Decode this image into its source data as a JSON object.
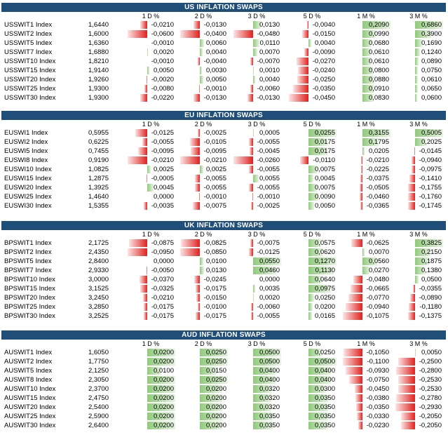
{
  "columns": [
    "1 D %",
    "2 D %",
    "3 D %",
    "5 D %",
    "1 M %",
    "3 M %"
  ],
  "colors": {
    "header_bg": "#1f4e79",
    "positive": "#8fca7a",
    "negative": "#e0211e"
  },
  "sections": [
    {
      "title": "US INFLATION SWAPS",
      "rows": [
        {
          "name": "USSWIT1 Index",
          "level": "1,6440",
          "changes": [
            "-0,0210",
            "-0,0130",
            "0,0130",
            "-0,0040",
            "0,2090",
            "0,6860"
          ],
          "values": [
            -0.021,
            -0.013,
            0.013,
            -0.004,
            0.209,
            0.686
          ]
        },
        {
          "name": "USSWIT2 Index",
          "level": "1,6000",
          "changes": [
            "-0,0600",
            "-0,0400",
            "-0,0480",
            "-0,0150",
            "0,0990",
            "0,3900"
          ],
          "values": [
            -0.06,
            -0.04,
            -0.048,
            -0.015,
            0.099,
            0.39
          ]
        },
        {
          "name": "USSWIT5 Index",
          "level": "1,6360",
          "changes": [
            "-0,0010",
            "0,0060",
            "0,0110",
            "0,0040",
            "0,0680",
            "0,1690"
          ],
          "values": [
            -0.001,
            0.006,
            0.011,
            0.004,
            0.068,
            0.169
          ]
        },
        {
          "name": "USSWIT7 Index",
          "level": "1,6880",
          "changes": [
            "0,0020",
            "0,0040",
            "0,0070",
            "-0,0090",
            "0,0610",
            "0,1240"
          ],
          "values": [
            0.002,
            0.004,
            0.007,
            -0.009,
            0.061,
            0.124
          ]
        },
        {
          "name": "USSWIT10 Index",
          "level": "1,8210",
          "changes": [
            "-0,0010",
            "-0,0040",
            "-0,0070",
            "-0,0270",
            "0,0610",
            "0,0890"
          ],
          "values": [
            -0.001,
            -0.004,
            -0.007,
            -0.027,
            0.061,
            0.089
          ]
        },
        {
          "name": "USSWIT15 Index",
          "level": "1,9140",
          "changes": [
            "0,0050",
            "0,0030",
            "0,0010",
            "-0,0240",
            "0,0800",
            "0,0750"
          ],
          "values": [
            0.005,
            0.003,
            0.001,
            -0.024,
            0.08,
            0.075
          ]
        },
        {
          "name": "USSWIT20 Index",
          "level": "1,9260",
          "changes": [
            "-0,0020",
            "0,0050",
            "0,0040",
            "-0,0250",
            "0,0880",
            "0,0610"
          ],
          "values": [
            -0.002,
            0.005,
            0.004,
            -0.025,
            0.088,
            0.061
          ]
        },
        {
          "name": "USSWIT25 Index",
          "level": "1,9300",
          "changes": [
            "-0,0080",
            "-0,0010",
            "-0,0060",
            "-0,0350",
            "0,0910",
            "0,0650"
          ],
          "values": [
            -0.008,
            -0.001,
            -0.006,
            -0.035,
            0.091,
            0.065
          ]
        },
        {
          "name": "USSWIT30 Index",
          "level": "1,9300",
          "changes": [
            "-0,0220",
            "-0,0130",
            "-0,0130",
            "-0,0450",
            "0,0830",
            "0,0600"
          ],
          "values": [
            -0.022,
            -0.013,
            -0.013,
            -0.045,
            0.083,
            0.06
          ]
        }
      ]
    },
    {
      "title": "EU INFLATION SWAPS",
      "rows": [
        {
          "name": "EUSWI1 Index",
          "level": "0,5955",
          "changes": [
            "-0,0125",
            "-0,0025",
            "0,0005",
            "0,0255",
            "0,3155",
            "0,5005"
          ],
          "values": [
            -0.0125,
            -0.0025,
            0.0005,
            0.0255,
            0.3155,
            0.5005
          ]
        },
        {
          "name": "EUSWI2 Index",
          "level": "0,6225",
          "changes": [
            "-0,0055",
            "-0,0105",
            "-0,0055",
            "0,0175",
            "0,1795",
            "0,2025"
          ],
          "values": [
            -0.0055,
            -0.0105,
            -0.0055,
            0.0175,
            0.1795,
            0.2025
          ]
        },
        {
          "name": "EUSWI5 Index",
          "level": "0,7455",
          "changes": [
            "-0,0095",
            "-0,0095",
            "-0,0045",
            "0,0175",
            "0,0205",
            "-0,0145"
          ],
          "values": [
            -0.0095,
            -0.0095,
            -0.0045,
            0.0175,
            0.0205,
            -0.0145
          ]
        },
        {
          "name": "EUSWI8 Index",
          "level": "0,9190",
          "changes": [
            "-0,0210",
            "-0,0210",
            "-0,0260",
            "-0,0110",
            "-0,0210",
            "-0,0940"
          ],
          "values": [
            -0.021,
            -0.021,
            -0.026,
            -0.011,
            -0.021,
            -0.094
          ]
        },
        {
          "name": "EUSWI10 Index",
          "level": "1,0825",
          "changes": [
            "0,0025",
            "0,0025",
            "-0,0055",
            "0,0075",
            "-0,0225",
            "-0,0975"
          ],
          "values": [
            0.0025,
            0.0025,
            -0.0055,
            0.0075,
            -0.0225,
            -0.0975
          ]
        },
        {
          "name": "EUSWI15 Index",
          "level": "1,2875",
          "changes": [
            "-0,0005",
            "-0,0055",
            "0,0055",
            "0,0045",
            "-0,0375",
            "-0,1410"
          ],
          "values": [
            -0.0005,
            -0.0055,
            0.0055,
            0.0045,
            -0.0375,
            -0.141
          ]
        },
        {
          "name": "EUSWI20 Index",
          "level": "1,3925",
          "changes": [
            "0,0045",
            "-0,0055",
            "-0,0055",
            "0,0075",
            "-0,0505",
            "-0,1755"
          ],
          "values": [
            0.0045,
            -0.0055,
            -0.0055,
            0.0075,
            -0.0505,
            -0.1755
          ]
        },
        {
          "name": "EUSWI25 Index",
          "level": "1,4640",
          "changes": [
            "0,0000",
            "-0,0010",
            "-0,0010",
            "0,0090",
            "-0,0460",
            "-0,1760"
          ],
          "values": [
            0.0,
            -0.001,
            -0.001,
            0.009,
            -0.046,
            -0.176
          ]
        },
        {
          "name": "EUSWI30 Index",
          "level": "1,5355",
          "changes": [
            "-0,0035",
            "-0,0075",
            "-0,0025",
            "0,0050",
            "-0,0365",
            "-0,1745"
          ],
          "values": [
            -0.0035,
            -0.0075,
            -0.0025,
            0.005,
            -0.0365,
            -0.1745
          ]
        }
      ]
    },
    {
      "title": "UK INFLATION SWAPS",
      "rows": [
        {
          "name": "BPSWIT1 Index",
          "level": "2,1725",
          "changes": [
            "-0,0875",
            "-0,0825",
            "-0,0075",
            "0,0575",
            "-0,0625",
            "0,3825"
          ],
          "values": [
            -0.0875,
            -0.0825,
            -0.0075,
            0.0575,
            -0.0625,
            0.3825
          ]
        },
        {
          "name": "BPSWIT2 Index",
          "level": "2,4350",
          "changes": [
            "-0,0950",
            "-0,0850",
            "-0,0125",
            "0,0620",
            "0,0070",
            "0,2150"
          ],
          "values": [
            -0.095,
            -0.085,
            -0.0125,
            0.062,
            0.007,
            0.215
          ]
        },
        {
          "name": "BPSWIT5 Index",
          "level": "2,8400",
          "changes": [
            "0,0000",
            "0,0100",
            "0,0550",
            "0,1270",
            "0,0560",
            "0,1875"
          ],
          "values": [
            0.0,
            0.01,
            0.055,
            0.127,
            0.056,
            0.1875
          ]
        },
        {
          "name": "BPSWIT7 Index",
          "level": "2,9330",
          "changes": [
            "-0,0050",
            "0,0130",
            "0,0460",
            "0,1130",
            "0,0270",
            "0,1380"
          ],
          "values": [
            -0.005,
            0.013,
            0.046,
            0.113,
            0.027,
            0.138
          ]
        },
        {
          "name": "BPSWIT10 Index",
          "level": "3,0000",
          "changes": [
            "-0,0370",
            "-0,0245",
            "0,0000",
            "0,0640",
            "-0,0480",
            "0,0500"
          ],
          "values": [
            -0.037,
            -0.0245,
            0.0,
            0.064,
            -0.048,
            0.05
          ]
        },
        {
          "name": "BPSWIT15 Index",
          "level": "3,1525",
          "changes": [
            "-0,0325",
            "-0,0175",
            "0,0035",
            "0,0975",
            "-0,0665",
            "-0,0355"
          ],
          "values": [
            -0.0325,
            -0.0175,
            0.0035,
            0.0975,
            -0.0665,
            -0.0355
          ]
        },
        {
          "name": "BPSWIT20 Index",
          "level": "3,2450",
          "changes": [
            "-0,0210",
            "-0,0150",
            "0,0020",
            "0,0250",
            "-0,0770",
            "-0,0890"
          ],
          "values": [
            -0.021,
            -0.015,
            0.002,
            0.025,
            -0.077,
            -0.089
          ]
        },
        {
          "name": "BPSWIT25 Index",
          "level": "3,2850",
          "changes": [
            "-0,0175",
            "-0,0100",
            "-0,0060",
            "0,0200",
            "-0,0940",
            "-0,1180"
          ],
          "values": [
            -0.0175,
            -0.01,
            -0.006,
            0.02,
            -0.094,
            -0.118
          ]
        },
        {
          "name": "BPSWIT30 Index",
          "level": "3,2525",
          "changes": [
            "-0,0175",
            "-0,0175",
            "-0,0055",
            "0,0165",
            "-0,1075",
            "-0,1375"
          ],
          "values": [
            -0.0175,
            -0.0175,
            -0.0055,
            0.0165,
            -0.1075,
            -0.1375
          ]
        }
      ]
    },
    {
      "title": "AUD INFLATION SWAPS",
      "rows": [
        {
          "name": "AUSWIT1 Index",
          "level": "1,6050",
          "changes": [
            "0,0200",
            "0,0250",
            "0,0500",
            "0,0250",
            "-0,1050",
            "0,0050"
          ],
          "values": [
            0.02,
            0.025,
            0.05,
            0.025,
            -0.105,
            0.005
          ]
        },
        {
          "name": "AUSWIT2 Index",
          "level": "1,7750",
          "changes": [
            "0,0200",
            "0,0250",
            "0,0500",
            "0,0500",
            "-0,1100",
            "-0,2500"
          ],
          "values": [
            0.02,
            0.025,
            0.05,
            0.05,
            -0.11,
            -0.25
          ]
        },
        {
          "name": "AUSWIT5 Index",
          "level": "2,1250",
          "changes": [
            "0,0100",
            "0,0150",
            "0,0400",
            "0,0400",
            "-0,0930",
            "-0,2800"
          ],
          "values": [
            0.01,
            0.015,
            0.04,
            0.04,
            -0.093,
            -0.28
          ]
        },
        {
          "name": "AUSWIT8 Index",
          "level": "2,3050",
          "changes": [
            "0,0200",
            "0,0250",
            "0,0400",
            "0,0400",
            "-0,0750",
            "-0,2530"
          ],
          "values": [
            0.02,
            0.025,
            0.04,
            0.04,
            -0.075,
            -0.253
          ]
        },
        {
          "name": "AUSWIT10 Index",
          "level": "2,3700",
          "changes": [
            "0,0200",
            "0,0200",
            "0,0320",
            "0,0300",
            "-0,0450",
            "-0,2530"
          ],
          "values": [
            0.02,
            0.02,
            0.032,
            0.03,
            -0.045,
            -0.253
          ]
        },
        {
          "name": "AUSWIT15 Index",
          "level": "2,4750",
          "changes": [
            "0,0200",
            "0,0200",
            "0,0320",
            "0,0350",
            "-0,0380",
            "-0,2780"
          ],
          "values": [
            0.02,
            0.02,
            0.032,
            0.035,
            -0.038,
            -0.278
          ]
        },
        {
          "name": "AUSWIT20 Index",
          "level": "2,5400",
          "changes": [
            "0,0200",
            "0,0200",
            "0,0320",
            "0,0350",
            "-0,0350",
            "-0,2930"
          ],
          "values": [
            0.02,
            0.02,
            0.032,
            0.035,
            -0.035,
            -0.293
          ]
        },
        {
          "name": "AUSWIT25 Index",
          "level": "2,5900",
          "changes": [
            "0,0200",
            "0,0200",
            "0,0350",
            "0,0350",
            "-0,0330",
            "-0,2050"
          ],
          "values": [
            0.02,
            0.02,
            0.035,
            0.035,
            -0.033,
            -0.205
          ]
        },
        {
          "name": "AUSWIT30 Index",
          "level": "2,6400",
          "changes": [
            "0,0200",
            "0,0200",
            "0,0350",
            "0,0350",
            "-0,0230",
            "-0,2050"
          ],
          "values": [
            0.02,
            0.02,
            0.035,
            0.035,
            -0.023,
            -0.205
          ]
        }
      ]
    }
  ]
}
